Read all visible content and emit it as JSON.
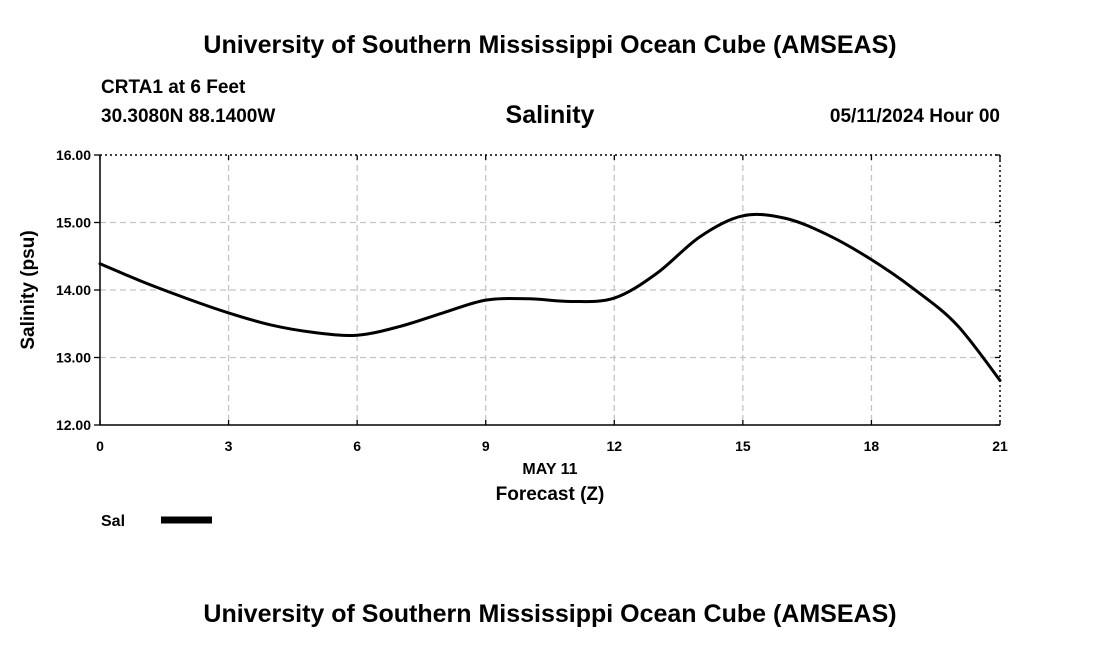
{
  "header": {
    "title": "University of Southern Mississippi Ocean Cube (AMSEAS)",
    "station": "CRTA1 at 6 Feet",
    "coordinates": "30.3080N  88.1400W",
    "datetime": "05/11/2024 Hour 00"
  },
  "footer": {
    "title": "University of Southern Mississippi Ocean Cube (AMSEAS)"
  },
  "chart_data": {
    "type": "line",
    "title": "Salinity",
    "xlabel": "Forecast (Z)",
    "xsublabel": "MAY 11",
    "ylabel": "Salinity (psu)",
    "xlim": [
      0,
      21
    ],
    "ylim": [
      12,
      16
    ],
    "xticks": [
      0,
      3,
      6,
      9,
      12,
      15,
      18,
      21
    ],
    "yticks": [
      12,
      13,
      14,
      15,
      16
    ],
    "ytick_labels": [
      "12.00",
      "13.00",
      "14.00",
      "15.00",
      "16.00"
    ],
    "grid": true,
    "legend_position": "bottom-left",
    "series": [
      {
        "name": "Sal",
        "color": "#000000",
        "x": [
          0,
          1,
          2,
          3,
          4,
          5,
          6,
          7,
          8,
          9,
          10,
          11,
          12,
          13,
          14,
          15,
          16,
          17,
          18,
          19,
          20,
          21
        ],
        "values": [
          14.39,
          14.12,
          13.88,
          13.66,
          13.48,
          13.37,
          13.33,
          13.46,
          13.66,
          13.85,
          13.87,
          13.83,
          13.88,
          14.25,
          14.79,
          15.1,
          15.06,
          14.81,
          14.45,
          14.01,
          13.48,
          12.66
        ]
      }
    ]
  }
}
